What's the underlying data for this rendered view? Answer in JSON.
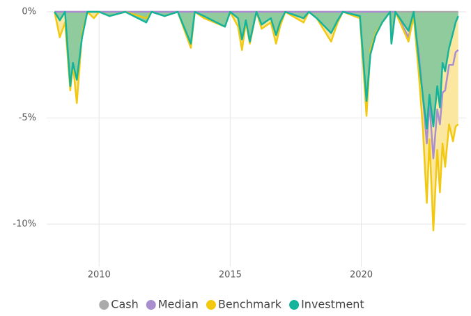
{
  "chart_data": {
    "type": "line",
    "x": [
      2008.3,
      2008.5,
      2008.7,
      2008.9,
      2009.0,
      2009.15,
      2009.35,
      2009.55,
      2009.8,
      2010.0,
      2010.4,
      2011.0,
      2011.8,
      2012.0,
      2012.5,
      2013.0,
      2013.5,
      2013.65,
      2014.0,
      2014.8,
      2015.0,
      2015.3,
      2015.45,
      2015.6,
      2015.75,
      2016.0,
      2016.2,
      2016.55,
      2016.75,
      2016.9,
      2017.1,
      2017.8,
      2018.0,
      2018.3,
      2018.85,
      2019.1,
      2019.3,
      2019.95,
      2020.2,
      2020.35,
      2020.55,
      2020.8,
      2021.1,
      2021.15,
      2021.3,
      2021.8,
      2022.0,
      2022.2,
      2022.35,
      2022.5,
      2022.6,
      2022.75,
      2022.9,
      2023.0,
      2023.1,
      2023.2,
      2023.35,
      2023.5,
      2023.6,
      2023.7
    ],
    "series": [
      {
        "name": "Cash",
        "color": "#aaaaaa",
        "values": [
          0,
          0,
          0,
          0,
          0,
          0,
          0,
          0,
          0,
          0,
          0,
          0,
          0,
          0,
          0,
          0,
          0,
          0,
          0,
          0,
          0,
          0,
          0,
          0,
          0,
          0,
          0,
          0,
          0,
          0,
          0,
          0,
          0,
          0,
          0,
          0,
          0,
          0,
          0,
          0,
          0,
          0,
          0,
          0,
          0,
          0,
          0,
          0,
          0,
          0,
          0,
          0,
          0,
          0,
          0,
          0,
          0,
          0,
          0,
          0
        ]
      },
      {
        "name": "Median",
        "color": "#a98fd0",
        "values": [
          0,
          0,
          0,
          0,
          0,
          0,
          0,
          0,
          0,
          0,
          0,
          0,
          0,
          0,
          0,
          0,
          0,
          0,
          0,
          0,
          0,
          0,
          0,
          0,
          0,
          0,
          0,
          0,
          0,
          0,
          0,
          0,
          0,
          0,
          0,
          0,
          0,
          0,
          0,
          0,
          0,
          0,
          0,
          0,
          0,
          -1.2,
          -0.3,
          -2.0,
          -4.0,
          -6.2,
          -4.3,
          -6.9,
          -4.6,
          -5.3,
          -3.8,
          -3.7,
          -2.5,
          -2.5,
          -1.9,
          -1.8
        ]
      },
      {
        "name": "Benchmark",
        "color": "#f2c811",
        "area_color": "#fbe7a0",
        "values": [
          0,
          -1.2,
          -0.5,
          -3.7,
          -2.5,
          -4.3,
          -1.0,
          0,
          -0.3,
          0,
          -0.2,
          0,
          -0.3,
          0,
          -0.2,
          0,
          -1.7,
          0,
          -0.3,
          -0.7,
          0,
          -0.7,
          -1.8,
          -0.5,
          -1.5,
          0,
          -0.8,
          -0.5,
          -1.5,
          -0.7,
          0,
          -0.5,
          0,
          -0.3,
          -1.4,
          -0.5,
          0,
          -0.3,
          -4.9,
          -1.8,
          -1.0,
          -0.5,
          0,
          -1.5,
          0,
          -1.4,
          -0.2,
          -3.0,
          -5.5,
          -9.0,
          -6.0,
          -10.3,
          -6.5,
          -8.5,
          -6.2,
          -7.3,
          -5.3,
          -6.1,
          -5.4,
          -5.3
        ]
      },
      {
        "name": "Investment",
        "color": "#14b39c",
        "area_color": "#8fcb9c",
        "values": [
          0,
          -0.4,
          0,
          -3.5,
          -2.4,
          -3.2,
          -1.2,
          0,
          0,
          0,
          -0.2,
          0,
          -0.5,
          0,
          -0.2,
          0,
          -1.5,
          0,
          -0.2,
          -0.7,
          0,
          -0.3,
          -1.3,
          -0.4,
          -1.4,
          0,
          -0.6,
          -0.3,
          -1.1,
          -0.5,
          0,
          -0.3,
          0,
          -0.3,
          -1.0,
          -0.4,
          0,
          -0.2,
          -4.2,
          -2.0,
          -1.1,
          -0.5,
          0,
          -1.5,
          0,
          -0.9,
          0,
          -2.3,
          -4.0,
          -5.5,
          -3.9,
          -5.4,
          -3.5,
          -4.5,
          -2.4,
          -2.8,
          -1.7,
          -1.0,
          -0.5,
          -0.2
        ]
      }
    ],
    "xlim": [
      2008,
      2024
    ],
    "xticks": [
      2010,
      2015,
      2020
    ],
    "ylim": [
      -12,
      0
    ],
    "yticks": [
      {
        "value": 0,
        "label": "0%"
      },
      {
        "value": -5,
        "label": "-5%"
      },
      {
        "value": -10,
        "label": "-10%"
      }
    ],
    "grid": true,
    "legend": "bottom"
  }
}
